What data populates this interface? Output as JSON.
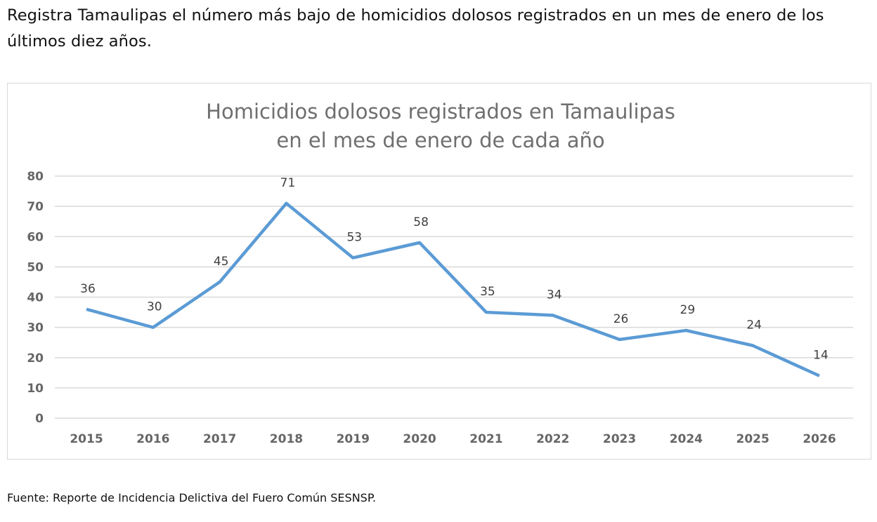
{
  "headline": "Registra Tamaulipas el número más bajo de homicidios dolosos registrados en un mes de enero de los últimos diez años.",
  "source": "Fuente: Reporte de Incidencia Delictiva del Fuero Común SESNSP.",
  "colors": {
    "line": "#5b9bd5",
    "grid": "#d9d9d9",
    "tick": "#666666",
    "title": "#6f6f6f",
    "label": "#404040"
  },
  "chart_data": {
    "type": "line",
    "title": [
      "Homicidios dolosos registrados en Tamaulipas",
      "en el mes de enero de cada año"
    ],
    "xlabel": "",
    "ylabel": "",
    "categories": [
      "2015",
      "2016",
      "2017",
      "2018",
      "2019",
      "2020",
      "2021",
      "2022",
      "2023",
      "2024",
      "2025",
      "2026"
    ],
    "series": [
      {
        "name": "Homicidios dolosos",
        "values": [
          36,
          30,
          45,
          71,
          53,
          58,
          35,
          34,
          26,
          29,
          24,
          14
        ]
      }
    ],
    "ylim": [
      0,
      80
    ],
    "yticks": [
      "0",
      "10",
      "20",
      "30",
      "40",
      "50",
      "60",
      "70",
      "80"
    ],
    "grid": true,
    "legend": "none",
    "data_labels": true
  }
}
